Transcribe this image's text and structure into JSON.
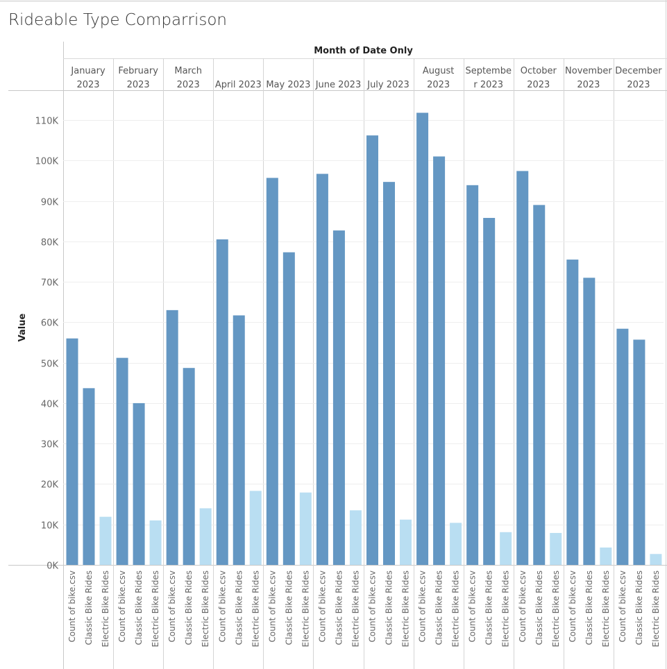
{
  "chart_data": {
    "type": "bar",
    "title": "Rideable Type Comparrison",
    "column_header": "Month of Date Only",
    "ylabel": "Value",
    "ylim": [
      0,
      115000
    ],
    "yticks": [
      0,
      10000,
      20000,
      30000,
      40000,
      50000,
      60000,
      70000,
      80000,
      90000,
      100000,
      110000
    ],
    "ytick_labels": [
      "0K",
      "10K",
      "20K",
      "30K",
      "40K",
      "50K",
      "60K",
      "70K",
      "80K",
      "90K",
      "100K",
      "110K"
    ],
    "grid": true,
    "categories": [
      "Count of bike.csv",
      "Classic Bike Rides",
      "Electric Bike Rides"
    ],
    "category_colors": [
      "#6497c3",
      "#6497c3",
      "#b9def2"
    ],
    "months": [
      {
        "label_lines": [
          "January",
          "2023"
        ],
        "values": [
          56000,
          43700,
          11900
        ]
      },
      {
        "label_lines": [
          "February",
          "2023"
        ],
        "values": [
          51200,
          40000,
          11000
        ]
      },
      {
        "label_lines": [
          "March",
          "2023"
        ],
        "values": [
          63000,
          48700,
          14000
        ]
      },
      {
        "label_lines": [
          "April 2023"
        ],
        "values": [
          80500,
          61700,
          18300
        ]
      },
      {
        "label_lines": [
          "May 2023"
        ],
        "values": [
          95700,
          77300,
          17900
        ]
      },
      {
        "label_lines": [
          "June 2023"
        ],
        "values": [
          96700,
          82700,
          13500
        ]
      },
      {
        "label_lines": [
          "July 2023"
        ],
        "values": [
          106200,
          94700,
          11200
        ]
      },
      {
        "label_lines": [
          "August",
          "2023"
        ],
        "values": [
          111800,
          101000,
          10400
        ]
      },
      {
        "label_lines": [
          "Septembe",
          "r 2023"
        ],
        "values": [
          93900,
          85800,
          8100
        ]
      },
      {
        "label_lines": [
          "October",
          "2023"
        ],
        "values": [
          97400,
          89000,
          7900
        ]
      },
      {
        "label_lines": [
          "November",
          "2023"
        ],
        "values": [
          75500,
          71000,
          4300
        ]
      },
      {
        "label_lines": [
          "December",
          "2023"
        ],
        "values": [
          58400,
          55700,
          2700
        ]
      }
    ]
  }
}
